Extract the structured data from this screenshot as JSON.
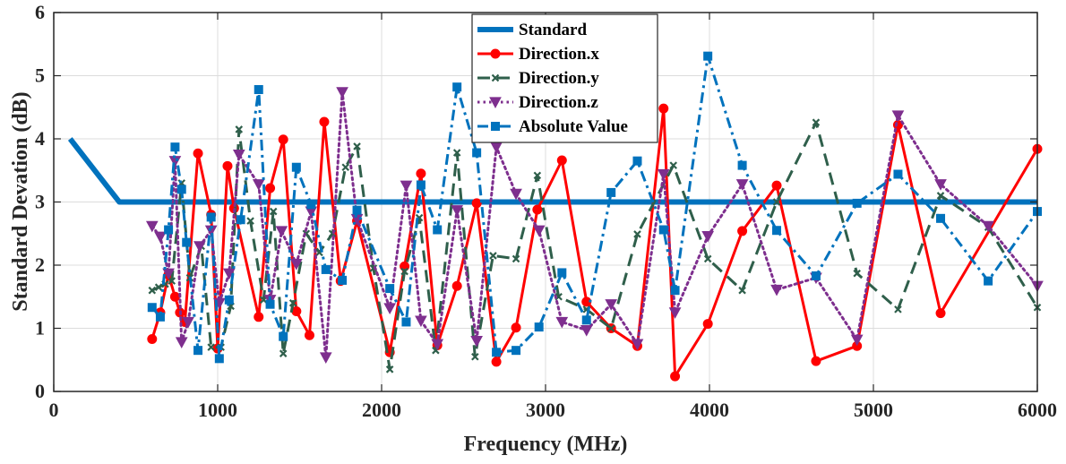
{
  "chart_data": {
    "type": "line",
    "title": "",
    "xlabel": "Frequency (MHz)",
    "ylabel": "Standard Devation (dB)",
    "xlim": [
      0,
      6000
    ],
    "ylim": [
      0,
      6
    ],
    "xticks": [
      0,
      1000,
      2000,
      3000,
      4000,
      5000,
      6000
    ],
    "yticks": [
      0,
      1,
      2,
      3,
      4,
      5,
      6
    ],
    "grid": true,
    "legend_position": "top-center",
    "series": [
      {
        "name": "Standard",
        "color": "#0072BD",
        "style": "solid-thick",
        "marker": "none",
        "points": [
          [
            100,
            4
          ],
          [
            400,
            3
          ],
          [
            6000,
            3
          ]
        ]
      },
      {
        "name": "Direction.x",
        "color": "#FF0000",
        "style": "solid",
        "marker": "circle",
        "points": [
          [
            600,
            0.83
          ],
          [
            650,
            1.25
          ],
          [
            700,
            1.85
          ],
          [
            740,
            1.5
          ],
          [
            770,
            1.25
          ],
          [
            800,
            1.1
          ],
          [
            880,
            3.77
          ],
          [
            960,
            2.8
          ],
          [
            1000,
            0.68
          ],
          [
            1060,
            3.57
          ],
          [
            1100,
            2.9
          ],
          [
            1250,
            1.18
          ],
          [
            1320,
            3.22
          ],
          [
            1400,
            3.99
          ],
          [
            1480,
            1.27
          ],
          [
            1560,
            0.89
          ],
          [
            1650,
            4.27
          ],
          [
            1750,
            1.75
          ],
          [
            1850,
            2.7
          ],
          [
            2050,
            0.62
          ],
          [
            2140,
            1.98
          ],
          [
            2240,
            3.45
          ],
          [
            2340,
            0.73
          ],
          [
            2460,
            1.67
          ],
          [
            2580,
            2.98
          ],
          [
            2700,
            0.47
          ],
          [
            2820,
            1.01
          ],
          [
            2950,
            2.88
          ],
          [
            3100,
            3.66
          ],
          [
            3250,
            1.42
          ],
          [
            3400,
            1.0
          ],
          [
            3560,
            0.72
          ],
          [
            3720,
            4.48
          ],
          [
            3790,
            0.24
          ],
          [
            3990,
            1.07
          ],
          [
            4200,
            2.54
          ],
          [
            4410,
            3.26
          ],
          [
            4650,
            0.48
          ],
          [
            4900,
            0.72
          ],
          [
            5150,
            4.22
          ],
          [
            5410,
            1.24
          ],
          [
            6000,
            3.84
          ]
        ]
      },
      {
        "name": "Direction.y",
        "color": "#2F5F4B",
        "style": "dashed",
        "marker": "x",
        "points": [
          [
            600,
            1.6
          ],
          [
            640,
            1.65
          ],
          [
            680,
            1.7
          ],
          [
            720,
            1.75
          ],
          [
            780,
            3.3
          ],
          [
            830,
            1.8
          ],
          [
            900,
            2.3
          ],
          [
            960,
            0.7
          ],
          [
            1020,
            0.7
          ],
          [
            1080,
            1.35
          ],
          [
            1130,
            4.15
          ],
          [
            1200,
            2.7
          ],
          [
            1280,
            1.45
          ],
          [
            1340,
            2.85
          ],
          [
            1400,
            0.6
          ],
          [
            1460,
            1.4
          ],
          [
            1540,
            2.5
          ],
          [
            1620,
            2.2
          ],
          [
            1700,
            2.5
          ],
          [
            1780,
            3.55
          ],
          [
            1850,
            3.88
          ],
          [
            1950,
            1.95
          ],
          [
            2050,
            0.35
          ],
          [
            2140,
            1.9
          ],
          [
            2230,
            2.75
          ],
          [
            2330,
            0.65
          ],
          [
            2460,
            3.78
          ],
          [
            2570,
            0.55
          ],
          [
            2680,
            2.15
          ],
          [
            2820,
            2.1
          ],
          [
            2950,
            3.42
          ],
          [
            3080,
            1.5
          ],
          [
            3250,
            1.3
          ],
          [
            3400,
            1.0
          ],
          [
            3560,
            2.49
          ],
          [
            3780,
            3.58
          ],
          [
            3990,
            2.1
          ],
          [
            4200,
            1.6
          ],
          [
            4410,
            3.0
          ],
          [
            4650,
            4.26
          ],
          [
            4900,
            1.87
          ],
          [
            5150,
            1.3
          ],
          [
            5410,
            3.1
          ],
          [
            5700,
            2.6
          ],
          [
            6000,
            1.33
          ]
        ]
      },
      {
        "name": "Direction.z",
        "color": "#7E2F8E",
        "style": "dotted",
        "marker": "triangle-down",
        "points": [
          [
            600,
            2.62
          ],
          [
            650,
            2.45
          ],
          [
            700,
            1.87
          ],
          [
            740,
            3.65
          ],
          [
            780,
            0.78
          ],
          [
            820,
            1.1
          ],
          [
            890,
            2.3
          ],
          [
            960,
            2.55
          ],
          [
            1010,
            1.4
          ],
          [
            1070,
            1.87
          ],
          [
            1130,
            3.75
          ],
          [
            1250,
            3.28
          ],
          [
            1320,
            1.45
          ],
          [
            1390,
            2.54
          ],
          [
            1480,
            2.02
          ],
          [
            1570,
            2.85
          ],
          [
            1660,
            0.54
          ],
          [
            1760,
            4.74
          ],
          [
            1850,
            2.73
          ],
          [
            2050,
            1.32
          ],
          [
            2150,
            3.26
          ],
          [
            2240,
            1.12
          ],
          [
            2340,
            0.75
          ],
          [
            2460,
            2.87
          ],
          [
            2580,
            0.8
          ],
          [
            2700,
            3.87
          ],
          [
            2820,
            3.13
          ],
          [
            2960,
            2.55
          ],
          [
            3100,
            1.1
          ],
          [
            3250,
            0.97
          ],
          [
            3400,
            1.38
          ],
          [
            3560,
            0.75
          ],
          [
            3720,
            3.44
          ],
          [
            3790,
            1.25
          ],
          [
            3990,
            2.46
          ],
          [
            4200,
            3.28
          ],
          [
            4410,
            1.61
          ],
          [
            4650,
            1.8
          ],
          [
            4900,
            0.82
          ],
          [
            5150,
            4.37
          ],
          [
            5410,
            3.28
          ],
          [
            5700,
            2.62
          ],
          [
            6000,
            1.67
          ]
        ]
      },
      {
        "name": "Absolute Value",
        "color": "#0072BD",
        "style": "dashdot",
        "marker": "square",
        "points": [
          [
            600,
            1.33
          ],
          [
            650,
            1.18
          ],
          [
            700,
            2.56
          ],
          [
            740,
            3.87
          ],
          [
            780,
            3.2
          ],
          [
            810,
            2.36
          ],
          [
            880,
            0.65
          ],
          [
            960,
            2.76
          ],
          [
            1010,
            0.52
          ],
          [
            1070,
            1.45
          ],
          [
            1140,
            2.72
          ],
          [
            1250,
            4.78
          ],
          [
            1320,
            1.38
          ],
          [
            1400,
            0.87
          ],
          [
            1480,
            3.55
          ],
          [
            1570,
            2.96
          ],
          [
            1660,
            1.93
          ],
          [
            1760,
            1.76
          ],
          [
            1850,
            2.87
          ],
          [
            2050,
            1.63
          ],
          [
            2150,
            1.1
          ],
          [
            2240,
            3.27
          ],
          [
            2340,
            2.56
          ],
          [
            2460,
            4.82
          ],
          [
            2580,
            3.78
          ],
          [
            2700,
            0.62
          ],
          [
            2820,
            0.65
          ],
          [
            2960,
            1.02
          ],
          [
            3100,
            1.88
          ],
          [
            3250,
            1.13
          ],
          [
            3400,
            3.15
          ],
          [
            3560,
            3.65
          ],
          [
            3720,
            2.56
          ],
          [
            3790,
            1.6
          ],
          [
            3990,
            5.31
          ],
          [
            4200,
            3.58
          ],
          [
            4410,
            2.55
          ],
          [
            4650,
            1.83
          ],
          [
            4900,
            2.98
          ],
          [
            5150,
            3.44
          ],
          [
            5410,
            2.74
          ],
          [
            5700,
            1.75
          ],
          [
            6000,
            2.85
          ]
        ]
      }
    ]
  }
}
